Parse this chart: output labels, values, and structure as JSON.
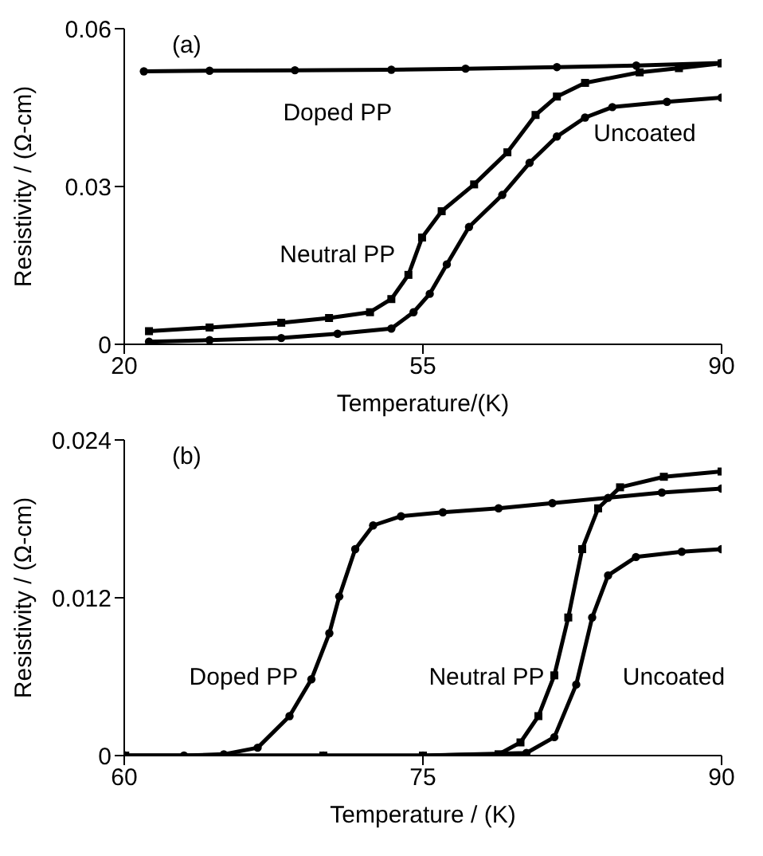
{
  "chart_data": [
    {
      "type": "line",
      "title": "(a)",
      "xlabel": "Temperature/(K)",
      "ylabel": "Resistivity / (Ω-cm)",
      "xlim": [
        20,
        90
      ],
      "xticks": [
        20,
        55,
        90
      ],
      "ylim": [
        0,
        0.06
      ],
      "yticks": [
        0,
        0.03,
        0.06
      ],
      "series": [
        {
          "name": "Doped PP",
          "color": "#000000",
          "marker": "circle",
          "x": [
            22.3,
            30,
            40,
            51.3,
            60,
            70.7,
            80,
            90
          ],
          "values": [
            0.0519,
            0.052,
            0.0521,
            0.0522,
            0.0524,
            0.0527,
            0.053,
            0.0535
          ]
        },
        {
          "name": "Neutral PP",
          "color": "#000000",
          "marker": "square",
          "x": [
            22.9,
            30,
            38.4,
            44,
            48.8,
            51.3,
            53.3,
            54.9,
            57.2,
            61,
            64.9,
            68.2,
            70.7,
            74,
            80.4,
            85,
            90
          ],
          "values": [
            0.0025,
            0.0032,
            0.0041,
            0.005,
            0.0061,
            0.0086,
            0.0132,
            0.0203,
            0.0253,
            0.0304,
            0.0365,
            0.0436,
            0.0471,
            0.0497,
            0.0517,
            0.0525,
            0.0534
          ]
        },
        {
          "name": "Uncoated",
          "color": "#000000",
          "marker": "circle",
          "x": [
            22.9,
            30,
            38.4,
            45,
            51.3,
            53.9,
            55.8,
            57.8,
            60.4,
            64.3,
            67.5,
            70.7,
            74,
            77.2,
            83.6,
            90
          ],
          "values": [
            0.0005,
            0.0008,
            0.0012,
            0.002,
            0.003,
            0.0061,
            0.0096,
            0.0152,
            0.0223,
            0.0284,
            0.0345,
            0.0395,
            0.0431,
            0.0451,
            0.0461,
            0.0469
          ]
        }
      ]
    },
    {
      "type": "line",
      "title": "(b)",
      "xlabel": "Temperature / (K)",
      "ylabel": "Resistivity / (Ω-cm)",
      "xlim": [
        60,
        90
      ],
      "xticks": [
        60,
        75,
        90
      ],
      "ylim": [
        0,
        0.024
      ],
      "yticks": [
        0,
        0.012,
        0.024
      ],
      "series": [
        {
          "name": "Doped PP",
          "color": "#000000",
          "marker": "circle",
          "x": [
            60.05,
            63,
            65,
            66.7,
            68.3,
            69.4,
            70.3,
            70.8,
            71.6,
            72.5,
            73.9,
            76,
            78.8,
            81.5,
            84.3,
            87,
            90
          ],
          "values": [
            0,
            0,
            0.0001,
            0.0006,
            0.003,
            0.0058,
            0.0093,
            0.0121,
            0.0157,
            0.0175,
            0.0182,
            0.0185,
            0.0188,
            0.0192,
            0.0196,
            0.02,
            0.0203
          ]
        },
        {
          "name": "Neutral PP",
          "color": "#000000",
          "marker": "square",
          "x": [
            60.05,
            70,
            75,
            78.8,
            79.9,
            80.8,
            81.6,
            82.3,
            83,
            83.8,
            84.9,
            87.1,
            90
          ],
          "values": [
            0,
            0,
            0,
            0.0001,
            0.001,
            0.003,
            0.0061,
            0.0105,
            0.0157,
            0.0188,
            0.0204,
            0.0212,
            0.0216
          ]
        },
        {
          "name": "Uncoated",
          "color": "#000000",
          "marker": "circle",
          "x": [
            60.05,
            70,
            75,
            80.2,
            81.6,
            82.7,
            83.5,
            84.3,
            85.7,
            88,
            90
          ],
          "values": [
            0,
            0,
            0,
            0.0002,
            0.0014,
            0.0054,
            0.0105,
            0.0137,
            0.0151,
            0.0155,
            0.0157
          ]
        }
      ]
    }
  ]
}
